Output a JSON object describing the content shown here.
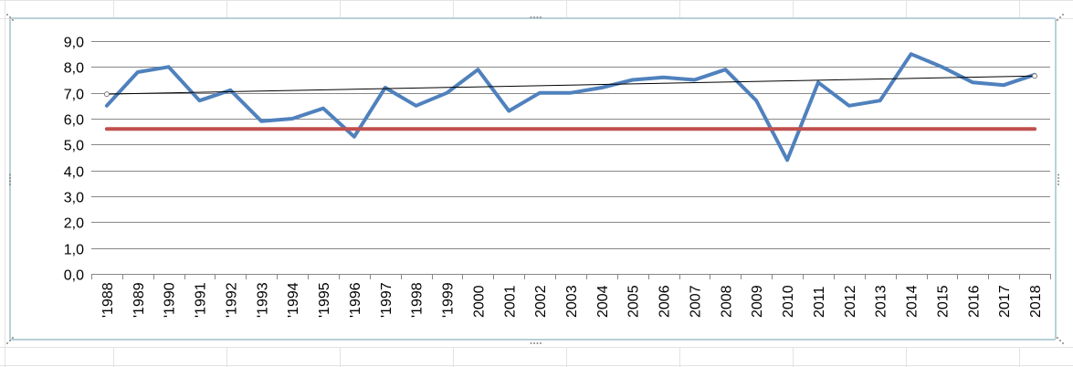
{
  "chart_data": {
    "type": "line",
    "categories": [
      "'1988",
      "'1989",
      "'1990",
      "'1991",
      "'1992",
      "'1993",
      "'1994",
      "'1995",
      "'1996",
      "'1997",
      "'1998",
      "'1999",
      "2000",
      "2001",
      "2002",
      "2003",
      "2004",
      "2005",
      "2006",
      "2007",
      "2008",
      "2009",
      "2010",
      "2011",
      "2012",
      "2013",
      "2014",
      "2015",
      "2016",
      "2017",
      "2018"
    ],
    "series": [
      {
        "values": [
          6.5,
          7.8,
          8.0,
          6.7,
          7.1,
          5.9,
          6.0,
          6.4,
          5.3,
          7.2,
          6.5,
          7.0,
          7.9,
          6.3,
          7.0,
          7.0,
          7.2,
          7.5,
          7.6,
          7.5,
          7.9,
          6.7,
          4.4,
          7.4,
          6.5,
          6.7,
          8.5,
          8.0,
          7.4,
          7.3,
          7.7
        ],
        "color": "#4f81bd"
      },
      {
        "values": [
          5.6,
          5.6,
          5.6,
          5.6,
          5.6,
          5.6,
          5.6,
          5.6,
          5.6,
          5.6,
          5.6,
          5.6,
          5.6,
          5.6,
          5.6,
          5.6,
          5.6,
          5.6,
          5.6,
          5.6,
          5.6,
          5.6,
          5.6,
          5.6,
          5.6,
          5.6,
          5.6,
          5.6,
          5.6,
          5.6,
          5.6
        ],
        "color": "#c0504d"
      }
    ],
    "trendline": {
      "start": 6.95,
      "end": 7.65,
      "color": "#000000"
    },
    "ylim": [
      0,
      9
    ],
    "yticks": [
      "0,0",
      "1,0",
      "2,0",
      "3,0",
      "4,0",
      "5,0",
      "6,0",
      "7,0",
      "8,0",
      "9,0"
    ],
    "title": "",
    "xlabel": "",
    "ylabel": "",
    "grid": true,
    "legend": "none"
  }
}
